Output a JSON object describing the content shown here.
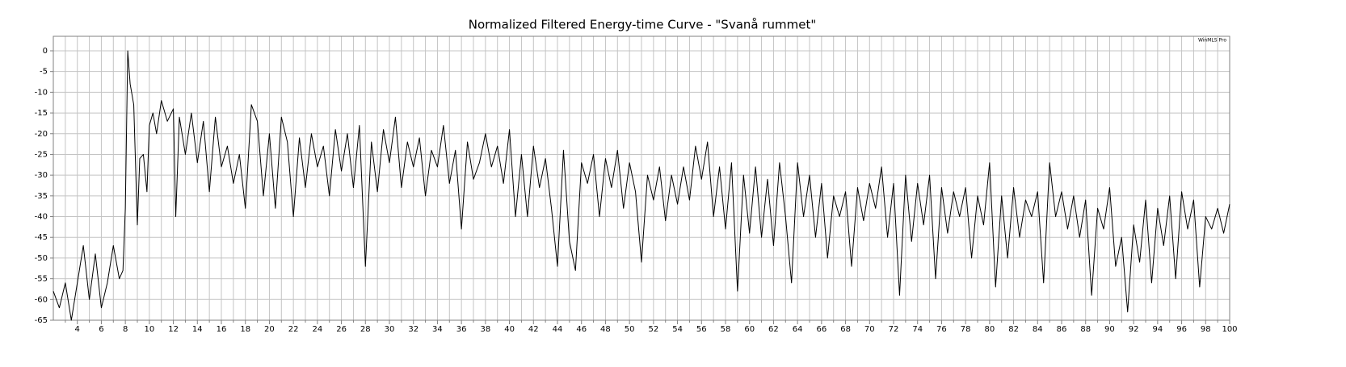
{
  "chart_data": {
    "type": "line",
    "title": "Normalized Filtered Energy-time Curve - \"Svanå rummet\"",
    "watermark": "WinMLS Pro",
    "color": "#000000",
    "grid": true,
    "grid_color": "#c4c4c4",
    "xlim": [
      2,
      100
    ],
    "ylim": [
      -65,
      3.5
    ],
    "xticks": [
      4,
      6,
      8,
      10,
      12,
      14,
      16,
      18,
      20,
      22,
      24,
      26,
      28,
      30,
      32,
      34,
      36,
      38,
      40,
      42,
      44,
      46,
      48,
      50,
      52,
      54,
      56,
      58,
      60,
      62,
      64,
      66,
      68,
      70,
      72,
      74,
      76,
      78,
      80,
      82,
      84,
      86,
      88,
      90,
      92,
      94,
      96,
      98,
      100
    ],
    "x_minor_ticks": [
      3,
      5,
      7,
      9,
      11,
      13,
      15,
      17,
      19,
      21,
      23,
      25,
      27,
      29,
      31,
      33,
      35,
      37,
      39,
      41,
      43,
      45,
      47,
      49,
      51,
      53,
      55,
      57,
      59,
      61,
      63,
      65,
      67,
      69,
      71,
      73,
      75,
      77,
      79,
      81,
      83,
      85,
      87,
      89,
      91,
      93,
      95,
      97,
      99
    ],
    "yticks": [
      0,
      -5,
      -10,
      -15,
      -20,
      -25,
      -30,
      -35,
      -40,
      -45,
      -50,
      -55,
      -60,
      -65
    ],
    "x": [
      2,
      2.5,
      3,
      3.5,
      4,
      4.5,
      5,
      5.5,
      6,
      6.5,
      7,
      7.5,
      7.8,
      8,
      8.2,
      8.4,
      8.7,
      9,
      9.2,
      9.5,
      9.8,
      10,
      10.3,
      10.6,
      11,
      11.5,
      12,
      12.2,
      12.5,
      13,
      13.5,
      14,
      14.5,
      15,
      15.5,
      16,
      16.5,
      17,
      17.5,
      18,
      18.5,
      19,
      19.5,
      20,
      20.5,
      21,
      21.5,
      22,
      22.5,
      23,
      23.5,
      24,
      24.5,
      25,
      25.5,
      26,
      26.5,
      27,
      27.5,
      28,
      28.5,
      29,
      29.5,
      30,
      30.5,
      31,
      31.5,
      32,
      32.5,
      33,
      33.5,
      34,
      34.5,
      35,
      35.5,
      36,
      36.5,
      37,
      37.5,
      38,
      38.5,
      39,
      39.5,
      40,
      40.5,
      41,
      41.5,
      42,
      42.5,
      43,
      43.5,
      44,
      44.5,
      45,
      45.5,
      46,
      46.5,
      47,
      47.5,
      48,
      48.5,
      49,
      49.5,
      50,
      50.5,
      51,
      51.5,
      52,
      52.5,
      53,
      53.5,
      54,
      54.5,
      55,
      55.5,
      56,
      56.5,
      57,
      57.5,
      58,
      58.5,
      59,
      59.5,
      60,
      60.5,
      61,
      61.5,
      62,
      62.5,
      63,
      63.5,
      64,
      64.5,
      65,
      65.5,
      66,
      66.5,
      67,
      67.5,
      68,
      68.5,
      69,
      69.5,
      70,
      70.5,
      71,
      71.5,
      72,
      72.5,
      73,
      73.5,
      74,
      74.5,
      75,
      75.5,
      76,
      76.5,
      77,
      77.5,
      78,
      78.5,
      79,
      79.5,
      80,
      80.5,
      81,
      81.5,
      82,
      82.5,
      83,
      83.5,
      84,
      84.5,
      85,
      85.5,
      86,
      86.5,
      87,
      87.5,
      88,
      88.5,
      89,
      89.5,
      90,
      90.5,
      91,
      91.5,
      92,
      92.5,
      93,
      93.5,
      94,
      94.5,
      95,
      95.5,
      96,
      96.5,
      97,
      97.5,
      98,
      98.5,
      99,
      99.5,
      100
    ],
    "values": [
      -58,
      -62,
      -56,
      -65,
      -56,
      -47,
      -60,
      -49,
      -62,
      -56,
      -47,
      -55,
      -53,
      -38,
      0,
      -8,
      -13,
      -42,
      -26,
      -25,
      -34,
      -18,
      -15,
      -20,
      -12,
      -17,
      -14,
      -40,
      -16,
      -25,
      -15,
      -27,
      -17,
      -34,
      -16,
      -28,
      -23,
      -32,
      -25,
      -38,
      -13,
      -17,
      -35,
      -20,
      -38,
      -16,
      -22,
      -40,
      -21,
      -33,
      -20,
      -28,
      -23,
      -35,
      -19,
      -29,
      -20,
      -33,
      -18,
      -52,
      -22,
      -34,
      -19,
      -27,
      -16,
      -33,
      -22,
      -28,
      -21,
      -35,
      -24,
      -28,
      -18,
      -32,
      -24,
      -43,
      -22,
      -31,
      -27,
      -20,
      -28,
      -23,
      -32,
      -19,
      -40,
      -25,
      -40,
      -23,
      -33,
      -26,
      -38,
      -52,
      -24,
      -46,
      -53,
      -27,
      -32,
      -25,
      -40,
      -26,
      -33,
      -24,
      -38,
      -27,
      -34,
      -51,
      -30,
      -36,
      -28,
      -41,
      -30,
      -37,
      -28,
      -36,
      -23,
      -31,
      -22,
      -40,
      -28,
      -43,
      -27,
      -58,
      -30,
      -44,
      -28,
      -45,
      -31,
      -47,
      -27,
      -40,
      -56,
      -27,
      -40,
      -30,
      -45,
      -32,
      -50,
      -35,
      -40,
      -34,
      -52,
      -33,
      -41,
      -32,
      -38,
      -28,
      -45,
      -32,
      -59,
      -30,
      -46,
      -32,
      -42,
      -30,
      -55,
      -33,
      -44,
      -34,
      -40,
      -33,
      -50,
      -35,
      -42,
      -27,
      -57,
      -35,
      -50,
      -33,
      -45,
      -36,
      -40,
      -34,
      -56,
      -27,
      -40,
      -34,
      -43,
      -35,
      -45,
      -36,
      -59,
      -38,
      -43,
      -33,
      -52,
      -45,
      -63,
      -42,
      -51,
      -36,
      -56,
      -38,
      -47,
      -35,
      -55,
      -34,
      -43,
      -36,
      -57,
      -40,
      -43,
      -38,
      -44,
      -37
    ]
  }
}
